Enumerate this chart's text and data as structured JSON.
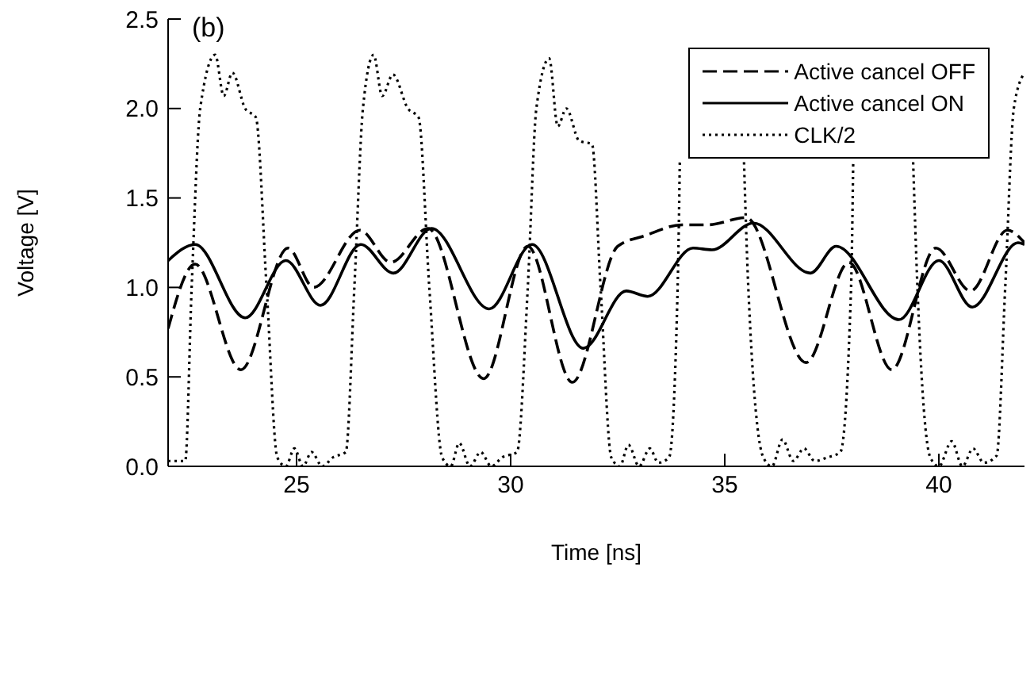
{
  "chart_data": {
    "type": "line",
    "xlabel": "Time [ns]",
    "ylabel": "Voltage [V]",
    "annotations": [
      "(b)"
    ],
    "xlim": [
      22,
      42
    ],
    "xticks": [
      25,
      30,
      35,
      40
    ],
    "ylim": [
      0,
      2.5
    ],
    "yticks": [
      {
        "value": 0,
        "label": "0.0"
      },
      {
        "value": 0.5,
        "label": "0.5"
      },
      {
        "value": 1,
        "label": "1.0"
      },
      {
        "value": 1.5,
        "label": "1.5"
      },
      {
        "value": 2,
        "label": "2.0"
      },
      {
        "value": 2.5,
        "label": "2.5"
      }
    ],
    "grid": false,
    "legend": "top right",
    "marker": "none",
    "series": [
      {
        "name": "Active cancel OFF",
        "color": "#000000",
        "line_style": "dashed",
        "x": [
          22,
          22.63,
          23.7,
          24.8,
          25.4,
          26.48,
          27.2,
          28.07,
          29.37,
          30.4,
          31.44,
          32.5,
          33.15,
          34.0,
          34.6,
          35.5,
          36.9,
          37.9,
          38.9,
          39.93,
          40.74,
          41.6,
          42
        ],
        "values": [
          0.77,
          1.13,
          0.54,
          1.22,
          1.0,
          1.32,
          1.14,
          1.33,
          0.49,
          1.23,
          0.47,
          1.23,
          1.29,
          1.35,
          1.35,
          1.39,
          0.58,
          1.14,
          0.54,
          1.22,
          0.98,
          1.32,
          1.25
        ]
      },
      {
        "name": "Active cancel ON",
        "color": "#000000",
        "line_style": "solid",
        "x": [
          22,
          22.63,
          23.8,
          24.75,
          25.56,
          26.5,
          27.26,
          28.15,
          29.5,
          30.5,
          31.7,
          32.7,
          33.2,
          34.26,
          34.7,
          35.67,
          37.0,
          37.6,
          39.07,
          40.0,
          40.78,
          41.85,
          42
        ],
        "values": [
          1.15,
          1.24,
          0.83,
          1.15,
          0.9,
          1.24,
          1.08,
          1.33,
          0.88,
          1.24,
          0.66,
          0.98,
          0.95,
          1.22,
          1.21,
          1.36,
          1.08,
          1.23,
          0.82,
          1.15,
          0.89,
          1.25,
          1.24
        ]
      },
      {
        "name": "CLK/2",
        "color": "#000000",
        "line_style": "dotted",
        "x": [
          22,
          22.4,
          22.55,
          22.75,
          23.1,
          23.3,
          23.5,
          23.8,
          24.05,
          24.3,
          24.55,
          24.75,
          24.95,
          25.15,
          25.35,
          25.6,
          25.85,
          26.15,
          26.35,
          26.55,
          26.8,
          27.0,
          27.25,
          27.6,
          27.85,
          28.1,
          28.4,
          28.6,
          28.8,
          29.05,
          29.3,
          29.55,
          29.8,
          30.15,
          30.4,
          30.6,
          30.9,
          31.1,
          31.3,
          31.6,
          31.9,
          32.1,
          32.35,
          32.55,
          32.75,
          33.0,
          33.25,
          33.45,
          33.7,
          33.9,
          33.95,
          34.0,
          35.4,
          35.45,
          35.55,
          35.9,
          36.1,
          36.35,
          36.6,
          36.85,
          37.1,
          37.4,
          37.7,
          37.95,
          38.0,
          38.05,
          39.35,
          39.4,
          39.5,
          39.8,
          40.0,
          40.3,
          40.55,
          40.8,
          41.05,
          41.35,
          41.55,
          41.75,
          42
        ],
        "values": [
          0.03,
          0.03,
          1.0,
          2.0,
          2.3,
          2.07,
          2.2,
          2.0,
          1.95,
          1.0,
          0.05,
          0.0,
          0.1,
          0.0,
          0.08,
          0.0,
          0.05,
          0.08,
          1.0,
          2.0,
          2.3,
          2.07,
          2.19,
          2.0,
          1.95,
          1.0,
          0.05,
          0.0,
          0.13,
          0.0,
          0.08,
          0.0,
          0.05,
          0.08,
          1.0,
          2.0,
          2.28,
          1.9,
          2.0,
          1.82,
          1.8,
          1.0,
          0.05,
          0.0,
          0.12,
          0.0,
          0.1,
          0.02,
          0.05,
          1.0,
          1.7,
          null,
          null,
          1.7,
          1.0,
          0.05,
          0.0,
          0.15,
          0.03,
          0.1,
          0.03,
          0.05,
          0.08,
          1.0,
          1.7,
          null,
          null,
          1.7,
          1.0,
          0.05,
          0.0,
          0.14,
          0.0,
          0.1,
          0.02,
          0.06,
          1.0,
          2.0,
          2.2
        ]
      }
    ]
  }
}
